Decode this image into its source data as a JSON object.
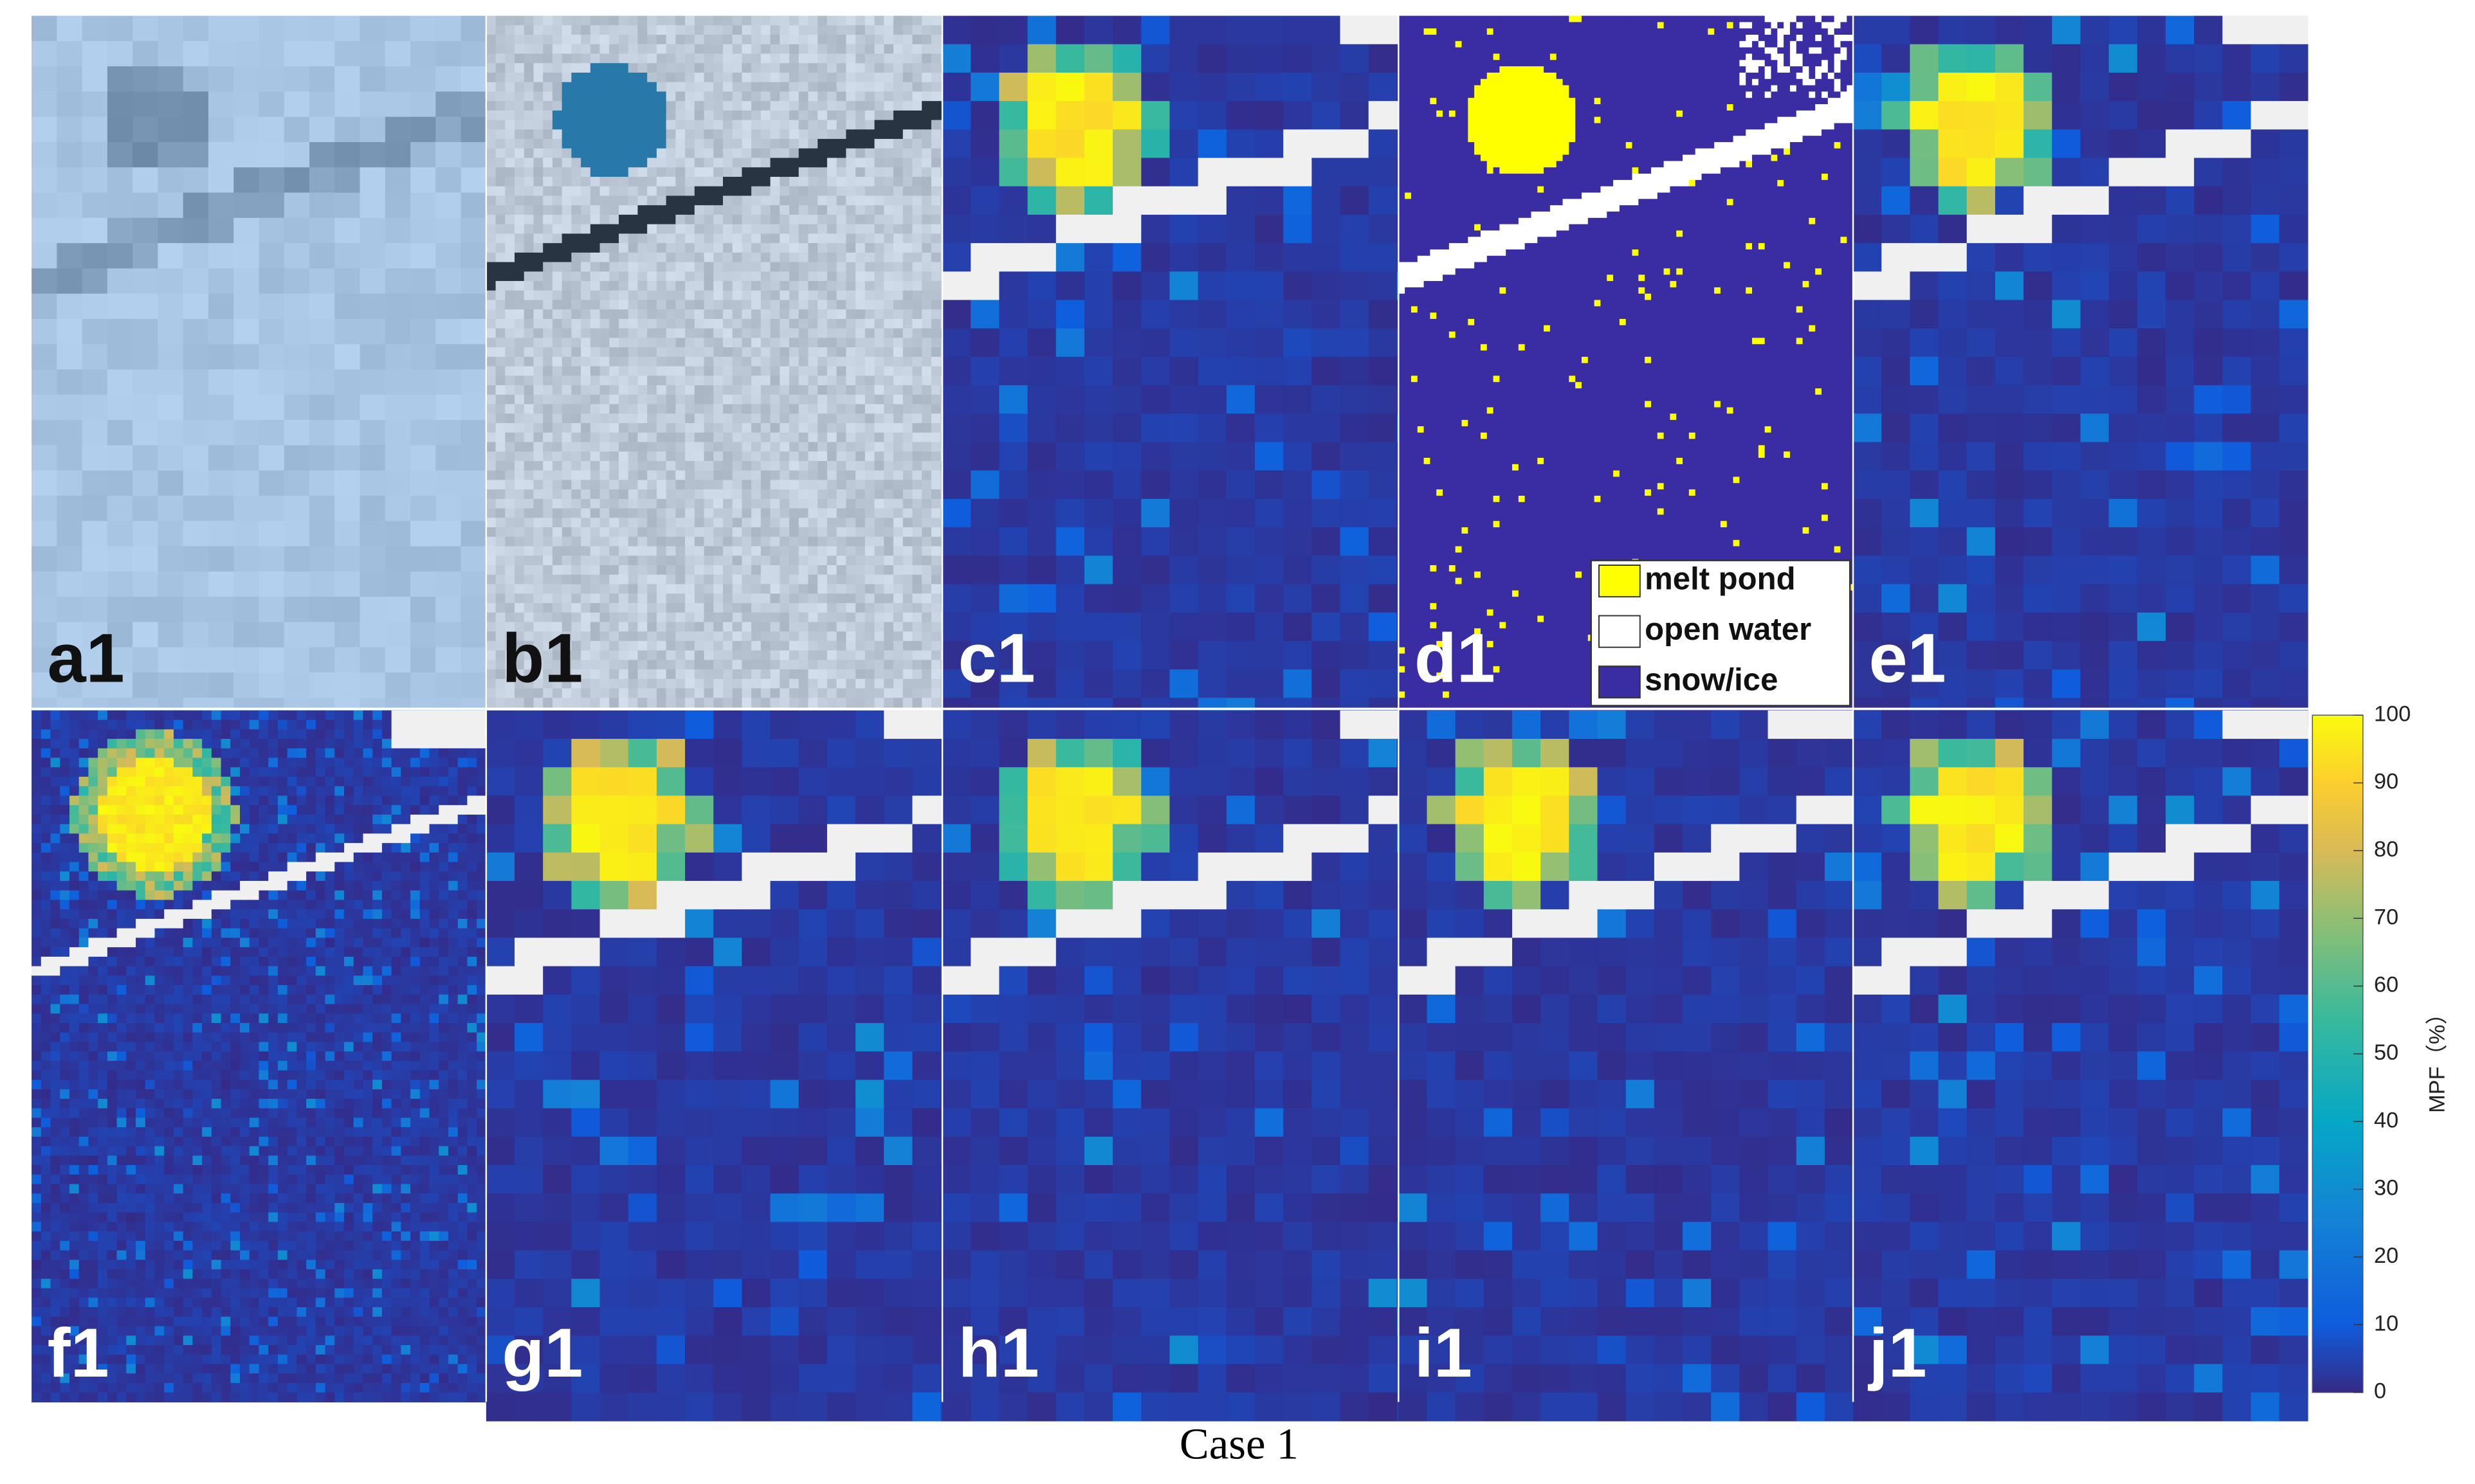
{
  "panels": [
    {
      "label": "a1"
    },
    {
      "label": "b1"
    },
    {
      "label": "c1"
    },
    {
      "label": "d1"
    },
    {
      "label": "e1"
    },
    {
      "label": "f1"
    },
    {
      "label": "g1"
    },
    {
      "label": "h1"
    },
    {
      "label": "i1"
    },
    {
      "label": "j1"
    }
  ],
  "legend": {
    "items": [
      {
        "label": "melt pond",
        "color": "#ffff00"
      },
      {
        "label": "open water",
        "color": "#ffffff"
      },
      {
        "label": "snow/ice",
        "color": "#3a2ca3"
      }
    ]
  },
  "colorbar": {
    "label": "MPF（%）",
    "lim": [
      0,
      100
    ],
    "ticks": [
      0,
      10,
      20,
      30,
      40,
      50,
      60,
      70,
      80,
      90,
      100
    ]
  },
  "caption": "Case 1"
}
